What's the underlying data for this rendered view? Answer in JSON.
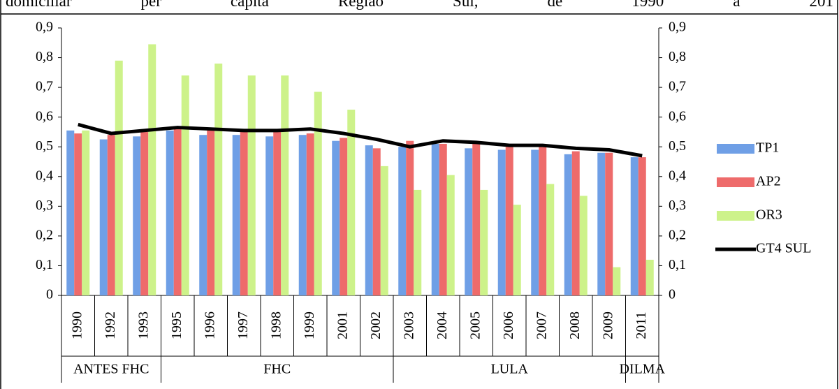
{
  "chart_data": {
    "type": "bar",
    "title": "domiciliar per capita Região Sul, de 1990 a 201",
    "categories": [
      "1990",
      "1992",
      "1993",
      "1995",
      "1996",
      "1997",
      "1998",
      "1999",
      "2001",
      "2002",
      "2003",
      "2004",
      "2005",
      "2006",
      "2007",
      "2008",
      "2009",
      "2011"
    ],
    "category_groups": [
      "ANTES FHC",
      "ANTES FHC",
      "ANTES FHC",
      "FHC",
      "FHC",
      "FHC",
      "FHC",
      "FHC",
      "FHC",
      "FHC",
      "LULA",
      "LULA",
      "LULA",
      "LULA",
      "LULA",
      "LULA",
      "LULA",
      "DILMA"
    ],
    "series": [
      {
        "name": "TP1",
        "color": "#6f9fe6",
        "type": "bar",
        "values": [
          0.555,
          0.525,
          0.535,
          0.555,
          0.54,
          0.54,
          0.535,
          0.54,
          0.52,
          0.505,
          0.5,
          0.51,
          0.495,
          0.49,
          0.49,
          0.475,
          0.48,
          0.465
        ]
      },
      {
        "name": "AP2",
        "color": "#ee6b6b",
        "type": "bar",
        "values": [
          0.545,
          0.54,
          0.55,
          0.56,
          0.555,
          0.55,
          0.55,
          0.545,
          0.53,
          0.495,
          0.52,
          0.51,
          0.51,
          0.5,
          0.5,
          0.485,
          0.48,
          0.465
        ]
      },
      {
        "name": "OR3",
        "color": "#cdf28a",
        "type": "bar",
        "values": [
          0.555,
          0.79,
          0.845,
          0.74,
          0.78,
          0.74,
          0.74,
          0.685,
          0.625,
          0.435,
          0.355,
          0.405,
          0.355,
          0.305,
          0.375,
          0.335,
          0.095,
          0.12
        ]
      },
      {
        "name": "GT4 SUL",
        "color": "#000000",
        "type": "line",
        "values": [
          0.575,
          0.545,
          0.555,
          0.565,
          0.56,
          0.555,
          0.555,
          0.56,
          0.545,
          0.525,
          0.5,
          0.52,
          0.515,
          0.505,
          0.505,
          0.495,
          0.49,
          0.47
        ]
      }
    ],
    "ylim": [
      0,
      0.9
    ],
    "yticks": [
      {
        "value": 0,
        "label": "0"
      },
      {
        "value": 0.1,
        "label": "0,1"
      },
      {
        "value": 0.2,
        "label": "0,2"
      },
      {
        "value": 0.3,
        "label": "0,3"
      },
      {
        "value": 0.4,
        "label": "0,4"
      },
      {
        "value": 0.5,
        "label": "0,5"
      },
      {
        "value": 0.6,
        "label": "0,6"
      },
      {
        "value": 0.7,
        "label": "0,7"
      },
      {
        "value": 0.8,
        "label": "0,8"
      },
      {
        "value": 0.9,
        "label": "0,9"
      }
    ],
    "y2lim": [
      0,
      0.9
    ],
    "y2ticks": [
      {
        "value": 0,
        "label": "0"
      },
      {
        "value": 0.1,
        "label": "0,1"
      },
      {
        "value": 0.2,
        "label": "0,2"
      },
      {
        "value": 0.3,
        "label": "0,3"
      },
      {
        "value": 0.4,
        "label": "0,4"
      },
      {
        "value": 0.5,
        "label": "0,5"
      },
      {
        "value": 0.6,
        "label": "0,6"
      },
      {
        "value": 0.7,
        "label": "0,7"
      },
      {
        "value": 0.8,
        "label": "0,8"
      },
      {
        "value": 0.9,
        "label": "0,9"
      }
    ],
    "grid": false,
    "legend": "right"
  }
}
